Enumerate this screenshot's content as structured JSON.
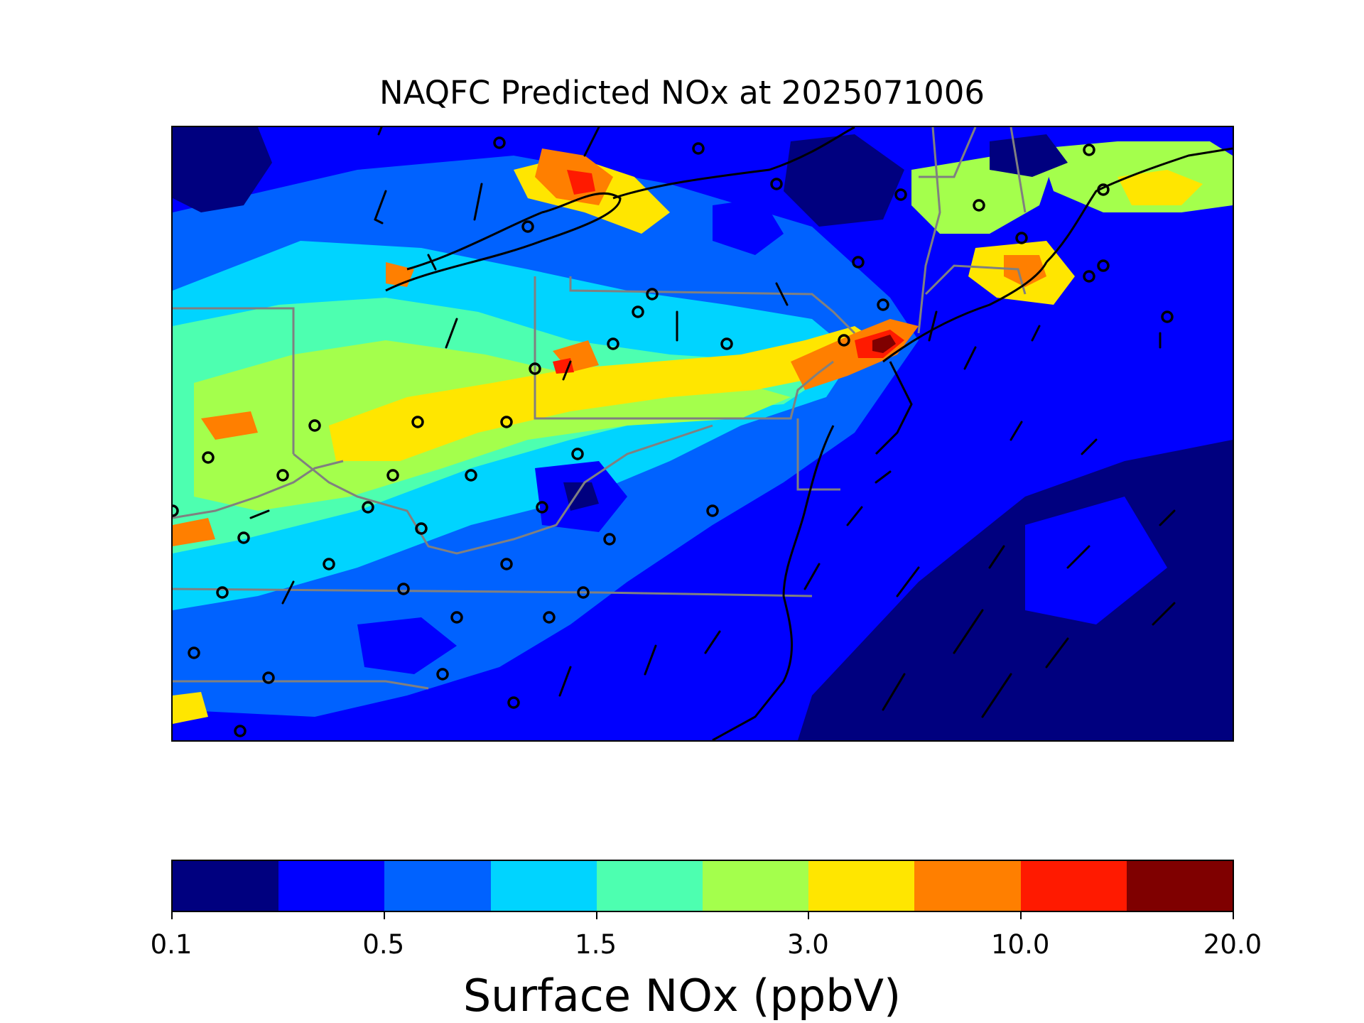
{
  "title": "NAQFC Predicted NOx at 2025071006",
  "colorbar": {
    "label": "Surface NOx (ppbV)",
    "colors": [
      "#00007f",
      "#0000ff",
      "#0062ff",
      "#00d4ff",
      "#4dffb0",
      "#a4ff4c",
      "#ffe600",
      "#ff7f00",
      "#ff1a00",
      "#7f0000"
    ],
    "tick_labels": [
      "0.1",
      "0.5",
      "1.5",
      "3.0",
      "10.0",
      "20.0"
    ]
  },
  "map": {
    "variable": "Surface NOx",
    "units": "ppbV",
    "region": "US Mid-Atlantic / Northeast",
    "overlays": [
      "state-boundaries",
      "coastlines",
      "wind-barbs",
      "monitor-sites"
    ]
  }
}
